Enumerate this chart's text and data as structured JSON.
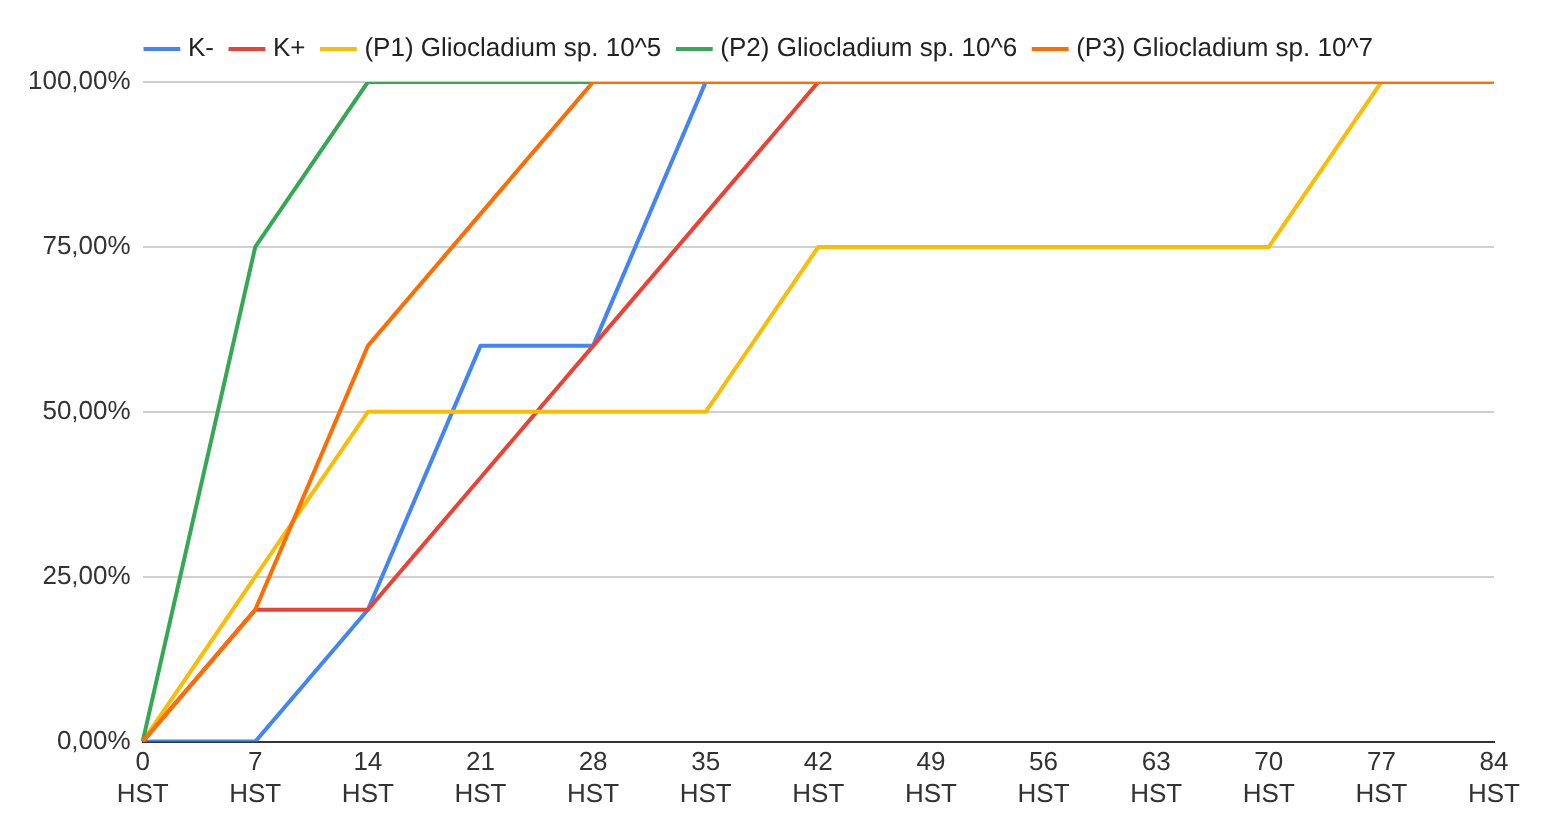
{
  "chart_data": {
    "type": "line",
    "categories": [
      "0 HST",
      "7 HST",
      "14 HST",
      "21 HST",
      "28 HST",
      "35 HST",
      "42 HST",
      "49 HST",
      "56 HST",
      "63 HST",
      "70 HST",
      "77 HST",
      "84 HST"
    ],
    "series": [
      {
        "name": "K-",
        "color": "#4285f4",
        "values": [
          0,
          0,
          20,
          60,
          60,
          100,
          null,
          null,
          null,
          null,
          null,
          null,
          null
        ]
      },
      {
        "name": "K+",
        "color": "#ea4335",
        "values": [
          0,
          20,
          20,
          40,
          60,
          80,
          100,
          null,
          null,
          null,
          null,
          null,
          null
        ]
      },
      {
        "name": "(P1) Gliocladium sp. 10^5",
        "color": "#fbbc04",
        "values": [
          0,
          25,
          50,
          50,
          50,
          50,
          75,
          75,
          75,
          75,
          75,
          100,
          100
        ]
      },
      {
        "name": "(P2) Gliocladium sp. 10^6",
        "color": "#34a853",
        "values": [
          0,
          75,
          100,
          100,
          100,
          null,
          null,
          null,
          null,
          null,
          null,
          null,
          null
        ]
      },
      {
        "name": "(P3) Gliocladium sp. 10^7",
        "color": "#ff6d01",
        "values": [
          0,
          20,
          60,
          80,
          100,
          100,
          100,
          100,
          100,
          100,
          100,
          100,
          100
        ]
      }
    ],
    "ylim": [
      0,
      100
    ],
    "yticks": [
      {
        "value": 0,
        "label": "0,00%"
      },
      {
        "value": 25,
        "label": "25,00%"
      },
      {
        "value": 50,
        "label": "50,00%"
      },
      {
        "value": 75,
        "label": "75,00%"
      },
      {
        "value": 100,
        "label": "100,00%"
      }
    ],
    "grid": "y",
    "legend": "top",
    "marker": "none",
    "line_style": "solid"
  }
}
